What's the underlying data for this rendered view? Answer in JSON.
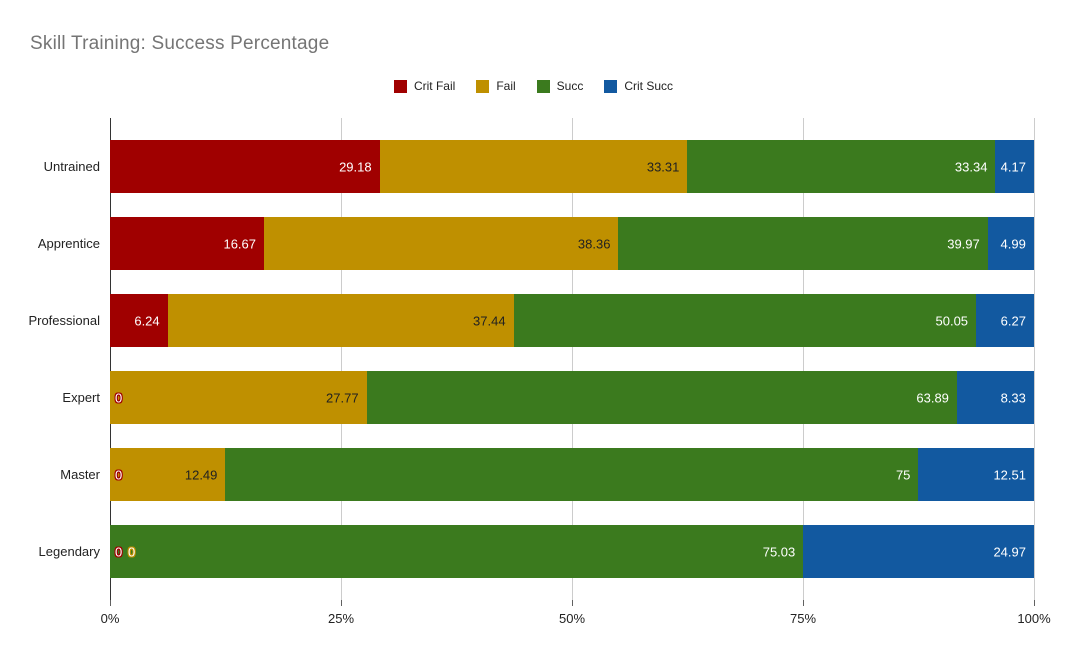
{
  "title": "Skill Training: Success Percentage",
  "chart_data": {
    "type": "bar",
    "orientation": "horizontal",
    "stacked": true,
    "title": "Skill Training: Success Percentage",
    "xlabel": "",
    "ylabel": "",
    "xlim": [
      0,
      100
    ],
    "x_tick_labels": [
      "0%",
      "25%",
      "50%",
      "75%",
      "100%"
    ],
    "x_tick_values": [
      0,
      25,
      50,
      75,
      100
    ],
    "grid": true,
    "legend_position": "top",
    "categories": [
      "Untrained",
      "Apprentice",
      "Professional",
      "Expert",
      "Master",
      "Legendary"
    ],
    "series": [
      {
        "name": "Crit Fail",
        "color": "#a00000",
        "label_color": "#ffffff",
        "values": [
          29.18,
          16.67,
          6.24,
          0,
          0,
          0
        ]
      },
      {
        "name": "Fail",
        "color": "#bf9000",
        "label_color": "#212121",
        "values": [
          33.31,
          38.36,
          37.44,
          27.77,
          12.49,
          0
        ]
      },
      {
        "name": "Succ",
        "color": "#3b7a1e",
        "label_color": "#ffffff",
        "values": [
          33.34,
          39.97,
          50.05,
          63.89,
          75,
          75.03
        ]
      },
      {
        "name": "Crit Succ",
        "color": "#1259a0",
        "label_color": "#ffffff",
        "values": [
          4.17,
          4.99,
          6.27,
          8.33,
          12.51,
          24.97
        ]
      }
    ]
  },
  "colors": {
    "title_text": "#757575",
    "gridline": "#cccccc",
    "baseline": "#333333",
    "axis_text": "#222222"
  }
}
